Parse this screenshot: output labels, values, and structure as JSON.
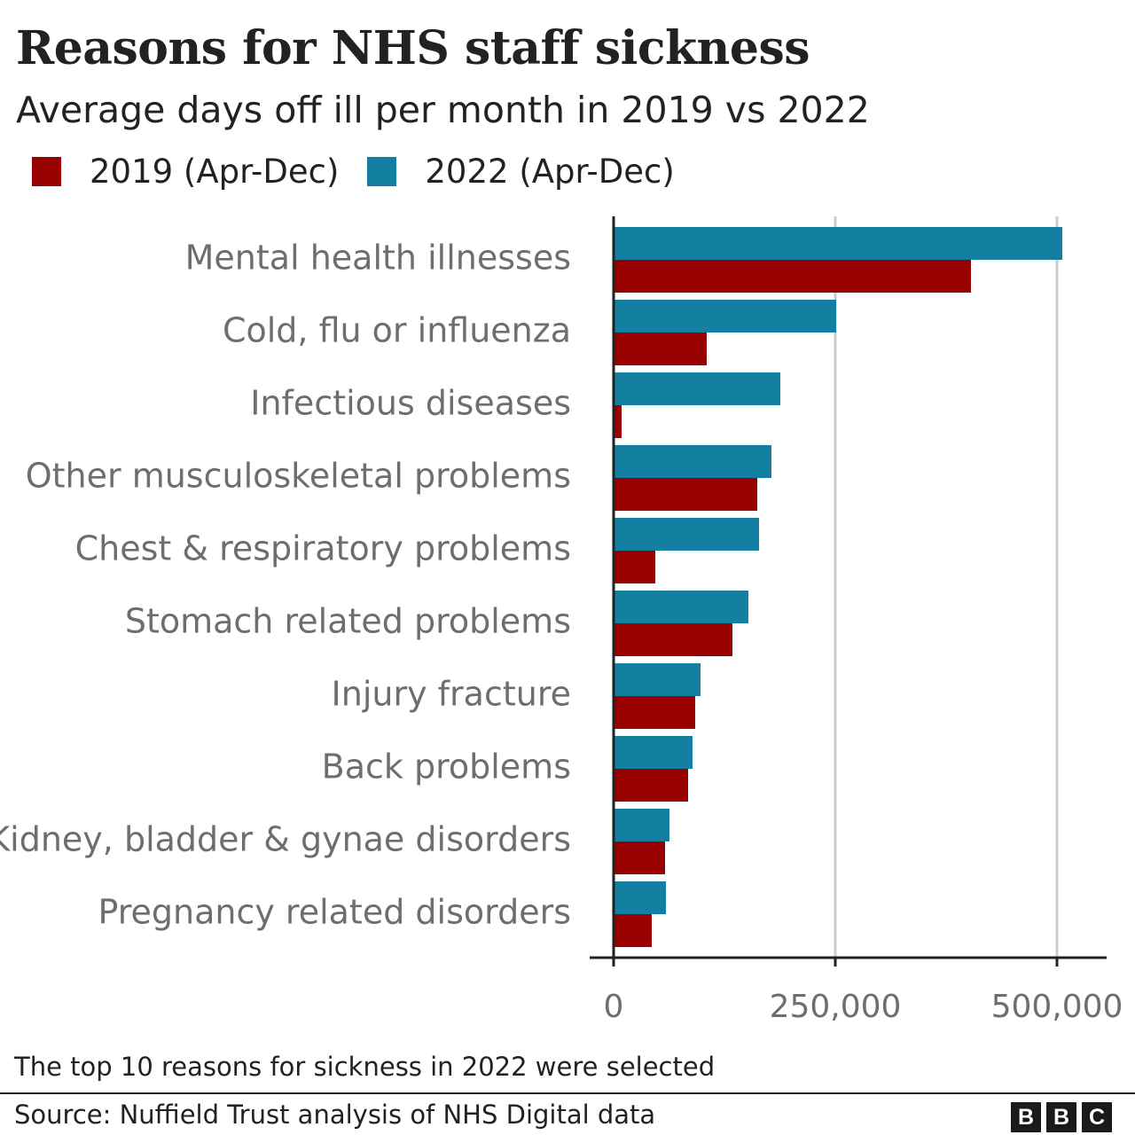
{
  "title": "Reasons for NHS staff sickness",
  "subtitle": "Average days off ill per month in 2019 vs 2022",
  "colors": {
    "series_2019": "#990000",
    "series_2022": "#1380A1",
    "text": "#222222",
    "category_label": "#6e6e6e",
    "grid": "#cccccc",
    "axis": "#222222"
  },
  "chart_data": {
    "type": "bar",
    "orientation": "horizontal",
    "title": "Reasons for NHS staff sickness",
    "subtitle": "Average days off ill per month in 2019 vs 2022",
    "xlabel": "",
    "ylabel": "",
    "xlim": [
      0,
      550000
    ],
    "xticks": [
      0,
      250000,
      500000
    ],
    "xtick_labels": [
      "0",
      "250,000",
      "500,000"
    ],
    "grid": "vertical",
    "legend_position": "top-left",
    "categories": [
      "Mental health illnesses",
      "Cold, flu or influenza",
      "Infectious diseases",
      "Other musculoskeletal problems",
      "Chest & respiratory problems",
      "Stomach related problems",
      "Injury fracture",
      "Back problems",
      "Kidney, bladder & gynae disorders",
      "Pregnancy related disorders"
    ],
    "series": [
      {
        "name": "2022 (Apr-Dec)",
        "color": "#1380A1",
        "values": [
          506000,
          251000,
          188000,
          178000,
          164000,
          152000,
          98000,
          89000,
          63000,
          59000
        ]
      },
      {
        "name": "2019 (Apr-Dec)",
        "color": "#990000",
        "values": [
          403000,
          105000,
          9000,
          162000,
          47000,
          134000,
          92000,
          84000,
          58000,
          43000
        ]
      }
    ]
  },
  "legend": [
    {
      "label": "2019 (Apr-Dec)",
      "color": "#990000"
    },
    {
      "label": "2022 (Apr-Dec)",
      "color": "#1380A1"
    }
  ],
  "footnote": "The top 10 reasons for sickness in 2022 were selected",
  "source": "Source: Nuffield Trust analysis of NHS Digital data",
  "logo": {
    "letters": [
      "B",
      "B",
      "C"
    ]
  }
}
